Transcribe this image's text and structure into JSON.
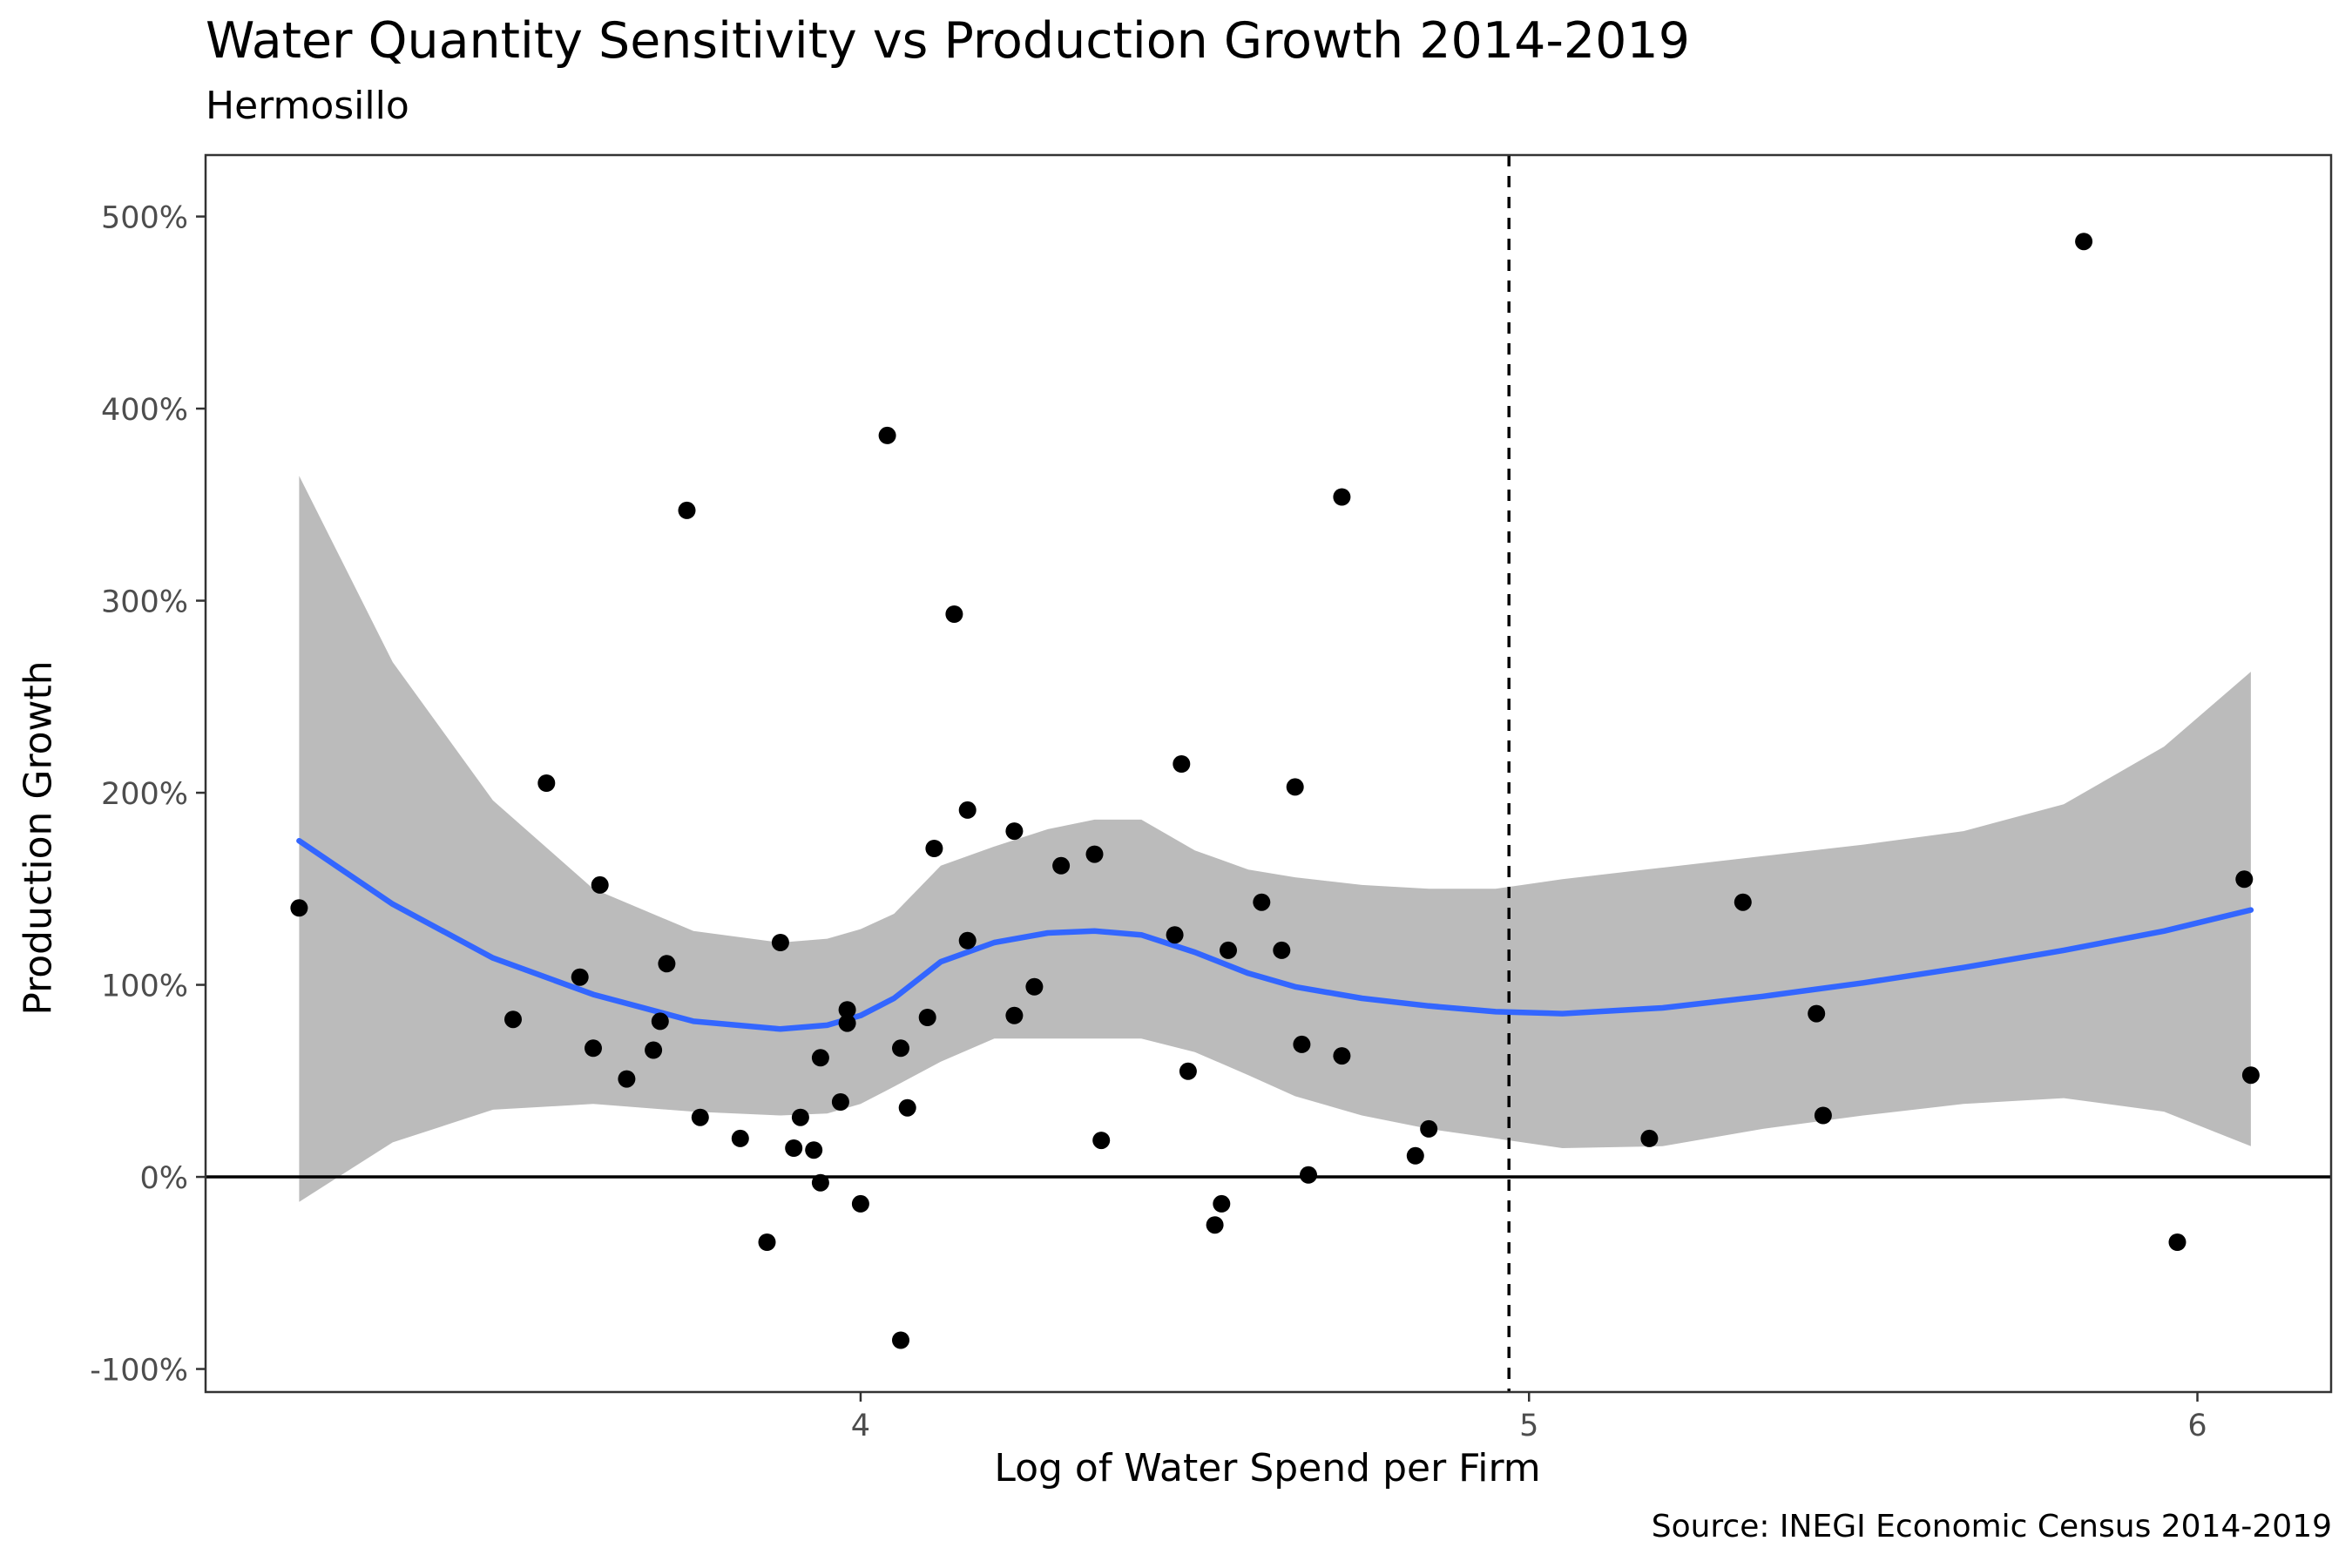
{
  "chart_data": {
    "type": "scatter",
    "title": "Water Quantity Sensitivity vs Production Growth 2014-2019",
    "subtitle": "Hermosillo",
    "caption": "Source: INEGI Economic Census 2014-2019",
    "xlabel": "Log of Water Spend per Firm",
    "ylabel": "Production Growth",
    "xlim": [
      3.02,
      6.2
    ],
    "ylim": [
      -112,
      532
    ],
    "x_ticks": [
      4,
      5,
      6
    ],
    "x_tick_labels": [
      "4",
      "5",
      "6"
    ],
    "y_ticks": [
      -100,
      0,
      100,
      200,
      300,
      400,
      500
    ],
    "y_tick_labels": [
      "-100%",
      "0%",
      "100%",
      "200%",
      "300%",
      "400%",
      "500%"
    ],
    "grid": false,
    "reference_lines": {
      "horizontal_y": 0,
      "vertical_x_dashed": 4.97
    },
    "colors": {
      "points": "#000000",
      "smooth_line": "#3366FF",
      "confidence_band": "#BBBBBB",
      "panel_border": "#333333"
    },
    "points": [
      {
        "x": 3.16,
        "y": 140
      },
      {
        "x": 3.48,
        "y": 82
      },
      {
        "x": 3.53,
        "y": 205
      },
      {
        "x": 3.58,
        "y": 104
      },
      {
        "x": 3.6,
        "y": 67
      },
      {
        "x": 3.61,
        "y": 152
      },
      {
        "x": 3.65,
        "y": 51
      },
      {
        "x": 3.69,
        "y": 66
      },
      {
        "x": 3.7,
        "y": 81
      },
      {
        "x": 3.71,
        "y": 111
      },
      {
        "x": 3.74,
        "y": 347
      },
      {
        "x": 3.76,
        "y": 31
      },
      {
        "x": 3.82,
        "y": 20
      },
      {
        "x": 3.86,
        "y": -34
      },
      {
        "x": 3.88,
        "y": 122
      },
      {
        "x": 3.9,
        "y": 15
      },
      {
        "x": 3.91,
        "y": 31
      },
      {
        "x": 3.93,
        "y": 14
      },
      {
        "x": 3.94,
        "y": -3
      },
      {
        "x": 3.94,
        "y": 62
      },
      {
        "x": 3.97,
        "y": 39
      },
      {
        "x": 3.98,
        "y": 80
      },
      {
        "x": 3.98,
        "y": 87
      },
      {
        "x": 4.0,
        "y": -14
      },
      {
        "x": 4.04,
        "y": 386
      },
      {
        "x": 4.06,
        "y": -85
      },
      {
        "x": 4.06,
        "y": 67
      },
      {
        "x": 4.07,
        "y": 36
      },
      {
        "x": 4.1,
        "y": 83
      },
      {
        "x": 4.11,
        "y": 171
      },
      {
        "x": 4.14,
        "y": 293
      },
      {
        "x": 4.16,
        "y": 123
      },
      {
        "x": 4.16,
        "y": 191
      },
      {
        "x": 4.23,
        "y": 84
      },
      {
        "x": 4.23,
        "y": 180
      },
      {
        "x": 4.26,
        "y": 99
      },
      {
        "x": 4.3,
        "y": 162
      },
      {
        "x": 4.35,
        "y": 168
      },
      {
        "x": 4.36,
        "y": 19
      },
      {
        "x": 4.47,
        "y": 126
      },
      {
        "x": 4.48,
        "y": 215
      },
      {
        "x": 4.49,
        "y": 55
      },
      {
        "x": 4.53,
        "y": -25
      },
      {
        "x": 4.54,
        "y": -14
      },
      {
        "x": 4.55,
        "y": 118
      },
      {
        "x": 4.6,
        "y": 143
      },
      {
        "x": 4.63,
        "y": 118
      },
      {
        "x": 4.65,
        "y": 203
      },
      {
        "x": 4.66,
        "y": 69
      },
      {
        "x": 4.67,
        "y": 1
      },
      {
        "x": 4.72,
        "y": 63
      },
      {
        "x": 4.72,
        "y": 354
      },
      {
        "x": 4.83,
        "y": 11
      },
      {
        "x": 4.85,
        "y": 25
      },
      {
        "x": 5.18,
        "y": 20
      },
      {
        "x": 5.32,
        "y": 143
      },
      {
        "x": 5.43,
        "y": 85
      },
      {
        "x": 5.44,
        "y": 32
      },
      {
        "x": 5.83,
        "y": 487
      },
      {
        "x": 5.97,
        "y": -34
      },
      {
        "x": 6.07,
        "y": 155
      },
      {
        "x": 6.08,
        "y": 53
      }
    ],
    "smooth": {
      "method": "loess",
      "x": [
        3.16,
        3.3,
        3.45,
        3.6,
        3.75,
        3.88,
        3.95,
        4.0,
        4.05,
        4.12,
        4.2,
        4.28,
        4.35,
        4.42,
        4.5,
        4.58,
        4.65,
        4.75,
        4.85,
        4.95,
        5.05,
        5.2,
        5.35,
        5.5,
        5.65,
        5.8,
        5.95,
        6.08
      ],
      "y": [
        175,
        142,
        114,
        95,
        81,
        77,
        79,
        84,
        93,
        112,
        122,
        127,
        128,
        126,
        117,
        106,
        99,
        93,
        89,
        86,
        85,
        88,
        94,
        101,
        109,
        118,
        128,
        139
      ],
      "lower": [
        -13,
        18,
        35,
        38,
        34,
        32,
        33,
        38,
        47,
        60,
        72,
        72,
        72,
        72,
        65,
        53,
        42,
        32,
        25,
        20,
        15,
        16,
        25,
        32,
        38,
        41,
        34,
        16
      ],
      "upper": [
        365,
        268,
        196,
        150,
        128,
        122,
        124,
        129,
        137,
        162,
        172,
        181,
        186,
        186,
        170,
        160,
        156,
        152,
        150,
        150,
        155,
        161,
        167,
        173,
        180,
        194,
        224,
        263
      ]
    }
  }
}
